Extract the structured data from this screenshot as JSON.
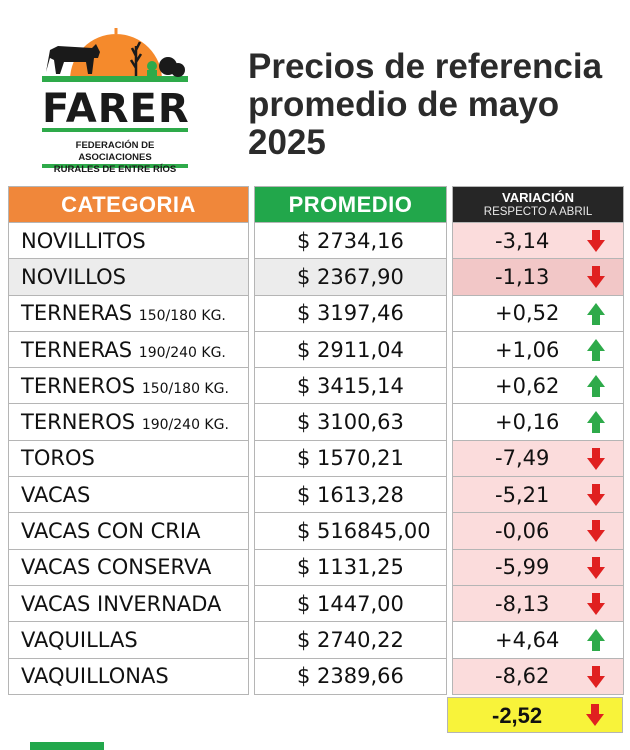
{
  "logo": {
    "name": "FARER",
    "subtitle_line1": "FEDERACIÓN DE ASOCIACIONES",
    "subtitle_line2": "RURALES DE ENTRE RÍOS"
  },
  "title": {
    "line1": "Precios de referencia",
    "line2": "promedio de mayo",
    "line3": "2025"
  },
  "table": {
    "headers": {
      "categoria": "CATEGORIA",
      "promedio": "PROMEDIO",
      "variacion": "VARIACIÓN",
      "variacion_sub": "RESPECTO A ABRIL"
    },
    "rows": [
      {
        "category": "NOVILLITOS",
        "weight": "",
        "price": "$ 2734,16",
        "variation": "-3,14",
        "trend": "down"
      },
      {
        "category": "NOVILLOS",
        "weight": "",
        "price": "$ 2367,90",
        "variation": "-1,13",
        "trend": "down"
      },
      {
        "category": "TERNERAS",
        "weight": "150/180 KG.",
        "price": "$ 3197,46",
        "variation": "+0,52",
        "trend": "up"
      },
      {
        "category": "TERNERAS",
        "weight": "190/240 KG.",
        "price": "$ 2911,04",
        "variation": "+1,06",
        "trend": "up"
      },
      {
        "category": "TERNEROS",
        "weight": "150/180 KG.",
        "price": "$ 3415,14",
        "variation": "+0,62",
        "trend": "up"
      },
      {
        "category": "TERNEROS",
        "weight": "190/240 KG.",
        "price": "$ 3100,63",
        "variation": "+0,16",
        "trend": "up"
      },
      {
        "category": "TOROS",
        "weight": "",
        "price": "$ 1570,21",
        "variation": "-7,49",
        "trend": "down"
      },
      {
        "category": "VACAS",
        "weight": "",
        "price": "$ 1613,28",
        "variation": "-5,21",
        "trend": "down"
      },
      {
        "category": "VACAS CON CRIA",
        "weight": "",
        "price": "$ 516845,00",
        "variation": "-0,06",
        "trend": "down"
      },
      {
        "category": "VACAS CONSERVA",
        "weight": "",
        "price": "$ 1131,25",
        "variation": "-5,99",
        "trend": "down"
      },
      {
        "category": "VACAS INVERNADA",
        "weight": "",
        "price": "$ 1447,00",
        "variation": "-8,13",
        "trend": "down"
      },
      {
        "category": "VAQUILLAS",
        "weight": "",
        "price": "$ 2740,22",
        "variation": "+4,64",
        "trend": "up"
      },
      {
        "category": "VAQUILLONAS",
        "weight": "",
        "price": "$ 2389,66",
        "variation": "-8,62",
        "trend": "down"
      }
    ],
    "total": {
      "variation": "-2,52",
      "trend": "down"
    }
  },
  "icons": {
    "up": "arrow-up-icon",
    "down": "arrow-down-icon"
  },
  "colors": {
    "categoria_header": "#f0873a",
    "promedio_header": "#22a74b",
    "variacion_header": "#262626",
    "negative_cell": "#fbdcdc",
    "total_highlight": "#f8f33a",
    "arrow_up": "#2eaa4a",
    "arrow_down": "#e02020"
  }
}
